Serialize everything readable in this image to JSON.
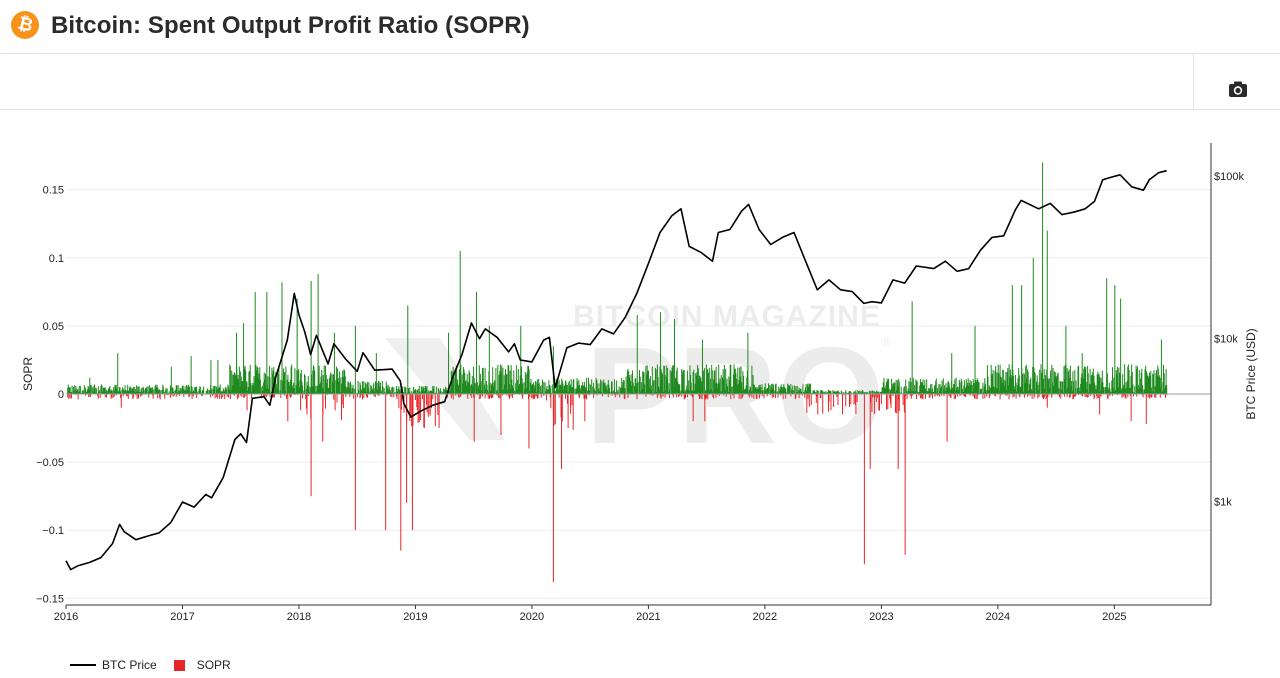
{
  "header": {
    "logo_glyph": "₿",
    "title": "Bitcoin: Spent Output Profit Ratio (SOPR)"
  },
  "toolbar": {
    "camera_icon": "camera-icon"
  },
  "watermark": {
    "line1": "BITCOIN MAGAZINE",
    "line2": "PRO",
    "mark": "®"
  },
  "legend": {
    "price_label": "BTC Price",
    "sopr_label": "SOPR"
  },
  "colors": {
    "positive": "#1f8a1f",
    "negative": "#e8262a",
    "price": "#000000",
    "logo": "#f7931a"
  },
  "chart_data": {
    "type": "bar",
    "title": "Bitcoin: Spent Output Profit Ratio (SOPR)",
    "xlabel": "",
    "ylabel": "SOPR",
    "y2label": "BTC Price (USD)",
    "xlim": [
      2016,
      2025.83
    ],
    "ylim": [
      -0.155,
      0.18
    ],
    "y2_scale": "log",
    "y2lim": [
      230,
      160000
    ],
    "x_ticks": [
      "2016",
      "2017",
      "2018",
      "2019",
      "2020",
      "2021",
      "2022",
      "2023",
      "2024",
      "2025"
    ],
    "y_ticks": [
      {
        "v": 0.15,
        "label": "0.15"
      },
      {
        "v": 0.1,
        "label": "0.1"
      },
      {
        "v": 0.05,
        "label": "0.05"
      },
      {
        "v": 0,
        "label": "0"
      },
      {
        "v": -0.05,
        "label": "−0.05"
      },
      {
        "v": -0.1,
        "label": "−0.1"
      },
      {
        "v": -0.15,
        "label": "−0.15"
      }
    ],
    "y2_ticks": [
      {
        "v": 100000,
        "label": "$100k"
      },
      {
        "v": 10000,
        "label": "$10k"
      },
      {
        "v": 1000,
        "label": "$1k"
      }
    ],
    "grid": true,
    "legend_position": "bottom-left",
    "series": [
      {
        "name": "BTC Price",
        "kind": "line",
        "axis": "right",
        "points": [
          [
            2016.0,
            430
          ],
          [
            2016.04,
            380
          ],
          [
            2016.1,
            400
          ],
          [
            2016.2,
            420
          ],
          [
            2016.3,
            450
          ],
          [
            2016.4,
            550
          ],
          [
            2016.46,
            720
          ],
          [
            2016.5,
            650
          ],
          [
            2016.6,
            580
          ],
          [
            2016.7,
            610
          ],
          [
            2016.8,
            640
          ],
          [
            2016.9,
            740
          ],
          [
            2017.0,
            990
          ],
          [
            2017.1,
            920
          ],
          [
            2017.2,
            1100
          ],
          [
            2017.25,
            1050
          ],
          [
            2017.35,
            1400
          ],
          [
            2017.45,
            2400
          ],
          [
            2017.5,
            2600
          ],
          [
            2017.55,
            2300
          ],
          [
            2017.6,
            4300
          ],
          [
            2017.7,
            4400
          ],
          [
            2017.75,
            3900
          ],
          [
            2017.8,
            5800
          ],
          [
            2017.9,
            9800
          ],
          [
            2017.96,
            19000
          ],
          [
            2018.0,
            14000
          ],
          [
            2018.05,
            11000
          ],
          [
            2018.1,
            8000
          ],
          [
            2018.15,
            10500
          ],
          [
            2018.25,
            7000
          ],
          [
            2018.3,
            9300
          ],
          [
            2018.4,
            7500
          ],
          [
            2018.5,
            6300
          ],
          [
            2018.55,
            8200
          ],
          [
            2018.65,
            6400
          ],
          [
            2018.8,
            6500
          ],
          [
            2018.87,
            5500
          ],
          [
            2018.9,
            4000
          ],
          [
            2018.96,
            3300
          ],
          [
            2019.05,
            3600
          ],
          [
            2019.15,
            3900
          ],
          [
            2019.25,
            4100
          ],
          [
            2019.32,
            5800
          ],
          [
            2019.4,
            8000
          ],
          [
            2019.48,
            12500
          ],
          [
            2019.55,
            10000
          ],
          [
            2019.6,
            11500
          ],
          [
            2019.7,
            10200
          ],
          [
            2019.8,
            8300
          ],
          [
            2019.85,
            9300
          ],
          [
            2019.9,
            7400
          ],
          [
            2020.0,
            7200
          ],
          [
            2020.1,
            9800
          ],
          [
            2020.15,
            10200
          ],
          [
            2020.2,
            5000
          ],
          [
            2020.3,
            8800
          ],
          [
            2020.4,
            9400
          ],
          [
            2020.5,
            9200
          ],
          [
            2020.6,
            11500
          ],
          [
            2020.7,
            10700
          ],
          [
            2020.8,
            13500
          ],
          [
            2020.9,
            19000
          ],
          [
            2021.0,
            29000
          ],
          [
            2021.1,
            45000
          ],
          [
            2021.2,
            57000
          ],
          [
            2021.28,
            63000
          ],
          [
            2021.35,
            37000
          ],
          [
            2021.45,
            34000
          ],
          [
            2021.55,
            30000
          ],
          [
            2021.6,
            45000
          ],
          [
            2021.7,
            47000
          ],
          [
            2021.8,
            61000
          ],
          [
            2021.86,
            67000
          ],
          [
            2021.95,
            47000
          ],
          [
            2022.05,
            38000
          ],
          [
            2022.15,
            42000
          ],
          [
            2022.25,
            45000
          ],
          [
            2022.35,
            30000
          ],
          [
            2022.45,
            20000
          ],
          [
            2022.55,
            23000
          ],
          [
            2022.65,
            20000
          ],
          [
            2022.75,
            19500
          ],
          [
            2022.85,
            16500
          ],
          [
            2022.92,
            16900
          ],
          [
            2023.0,
            16600
          ],
          [
            2023.1,
            23000
          ],
          [
            2023.2,
            22000
          ],
          [
            2023.3,
            28000
          ],
          [
            2023.45,
            27000
          ],
          [
            2023.55,
            30000
          ],
          [
            2023.65,
            26000
          ],
          [
            2023.75,
            27000
          ],
          [
            2023.85,
            35000
          ],
          [
            2023.95,
            42000
          ],
          [
            2024.05,
            43000
          ],
          [
            2024.15,
            62000
          ],
          [
            2024.2,
            71000
          ],
          [
            2024.35,
            63000
          ],
          [
            2024.45,
            68000
          ],
          [
            2024.55,
            58000
          ],
          [
            2024.65,
            60000
          ],
          [
            2024.75,
            63000
          ],
          [
            2024.83,
            70000
          ],
          [
            2024.9,
            95000
          ],
          [
            2024.96,
            98000
          ],
          [
            2025.05,
            102000
          ],
          [
            2025.15,
            86000
          ],
          [
            2025.25,
            82000
          ],
          [
            2025.3,
            95000
          ],
          [
            2025.38,
            105000
          ],
          [
            2025.45,
            108000
          ]
        ]
      },
      {
        "name": "SOPR",
        "kind": "bar",
        "axis": "left",
        "spikes": [
          [
            2016.2,
            0.012
          ],
          [
            2016.44,
            0.03
          ],
          [
            2016.9,
            0.02
          ],
          [
            2017.07,
            0.028
          ],
          [
            2017.24,
            0.025
          ],
          [
            2017.3,
            0.025
          ],
          [
            2017.46,
            0.045
          ],
          [
            2017.52,
            0.052
          ],
          [
            2017.62,
            0.075
          ],
          [
            2017.72,
            0.075
          ],
          [
            2017.85,
            0.082
          ],
          [
            2017.98,
            0.07
          ],
          [
            2018.1,
            0.083
          ],
          [
            2018.16,
            0.088
          ],
          [
            2018.3,
            0.045
          ],
          [
            2018.48,
            0.05
          ],
          [
            2018.66,
            0.03
          ],
          [
            2018.93,
            0.065
          ],
          [
            2019.28,
            0.045
          ],
          [
            2019.38,
            0.105
          ],
          [
            2019.52,
            0.075
          ],
          [
            2019.63,
            0.05
          ],
          [
            2019.9,
            0.05
          ],
          [
            2020.18,
            0.035
          ],
          [
            2020.9,
            0.058
          ],
          [
            2021.1,
            0.06
          ],
          [
            2021.22,
            0.055
          ],
          [
            2021.46,
            0.04
          ],
          [
            2021.85,
            0.045
          ],
          [
            2023.26,
            0.068
          ],
          [
            2023.6,
            0.03
          ],
          [
            2023.8,
            0.05
          ],
          [
            2024.12,
            0.08
          ],
          [
            2024.2,
            0.08
          ],
          [
            2024.3,
            0.1
          ],
          [
            2024.38,
            0.17
          ],
          [
            2024.42,
            0.12
          ],
          [
            2024.58,
            0.05
          ],
          [
            2024.72,
            0.03
          ],
          [
            2024.93,
            0.085
          ],
          [
            2025.0,
            0.08
          ],
          [
            2025.05,
            0.07
          ],
          [
            2025.4,
            0.04
          ],
          [
            2016.1,
            -0.004
          ],
          [
            2016.47,
            -0.01
          ],
          [
            2017.55,
            -0.012
          ],
          [
            2017.9,
            -0.02
          ],
          [
            2018.1,
            -0.075
          ],
          [
            2018.2,
            -0.035
          ],
          [
            2018.48,
            -0.1
          ],
          [
            2018.74,
            -0.1
          ],
          [
            2018.87,
            -0.115
          ],
          [
            2018.92,
            -0.08
          ],
          [
            2018.97,
            -0.1
          ],
          [
            2019.12,
            -0.015
          ],
          [
            2019.5,
            -0.035
          ],
          [
            2019.73,
            -0.03
          ],
          [
            2019.97,
            -0.04
          ],
          [
            2020.18,
            -0.138
          ],
          [
            2020.25,
            -0.055
          ],
          [
            2020.45,
            -0.02
          ],
          [
            2021.38,
            -0.02
          ],
          [
            2021.48,
            -0.02
          ],
          [
            2022.45,
            -0.015
          ],
          [
            2022.85,
            -0.125
          ],
          [
            2022.9,
            -0.055
          ],
          [
            2023.2,
            -0.118
          ],
          [
            2023.14,
            -0.055
          ],
          [
            2023.56,
            -0.035
          ],
          [
            2024.42,
            -0.01
          ],
          [
            2024.87,
            -0.015
          ],
          [
            2025.14,
            -0.02
          ],
          [
            2025.27,
            -0.022
          ]
        ]
      }
    ]
  }
}
